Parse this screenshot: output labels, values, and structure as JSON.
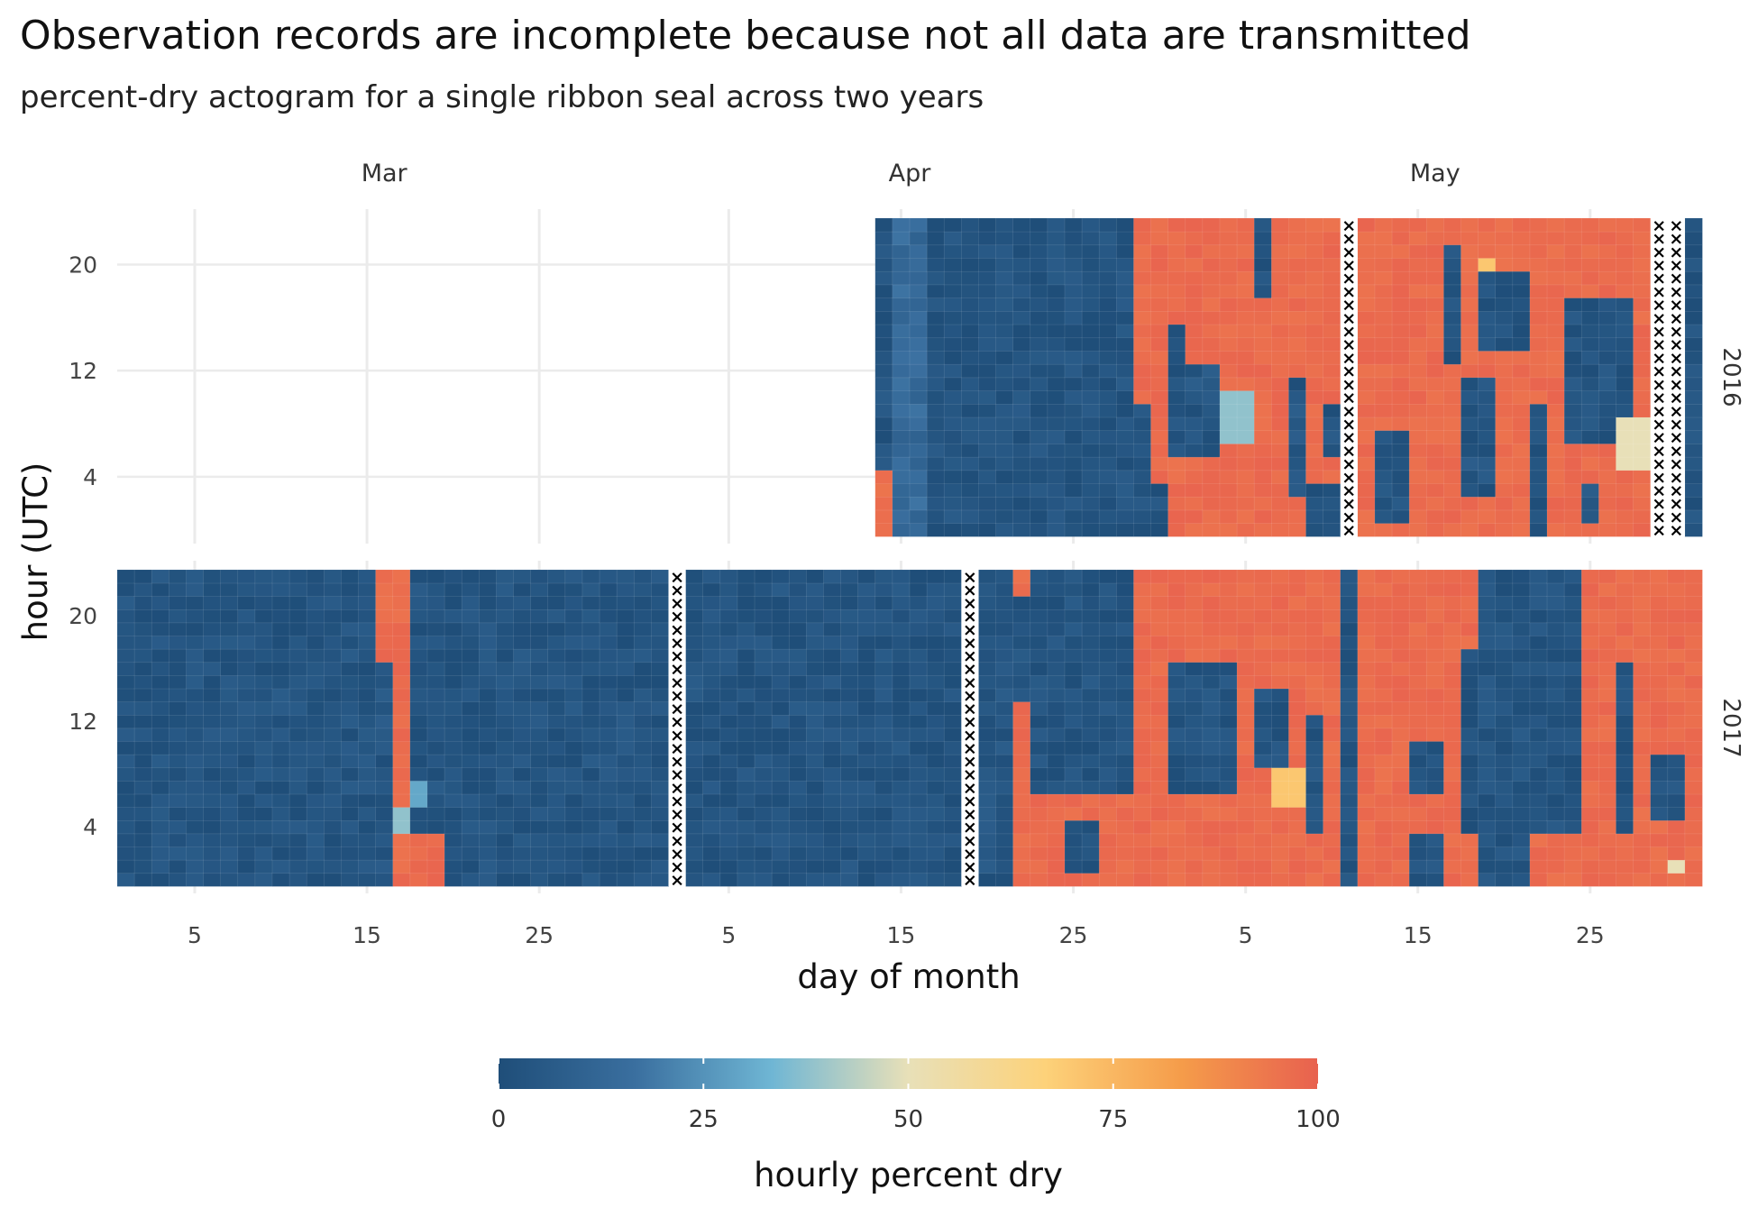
{
  "chart_data": {
    "type": "heatmap",
    "title": "Observation records are incomplete because not all data are transmitted",
    "subtitle": "percent-dry actogram for a single ribbon seal across two years",
    "xlabel": "day of month",
    "ylabel": "hour (UTC)",
    "month_labels": [
      "Mar",
      "Apr",
      "May"
    ],
    "x_ticks": [
      "5",
      "15",
      "25",
      "5",
      "15",
      "25",
      "5",
      "15",
      "25"
    ],
    "y_ticks": [
      "4",
      "12",
      "20"
    ],
    "facets": [
      {
        "year": "2016",
        "start_day": 45,
        "end_day": 92,
        "missing_days": [
          72,
          90,
          91
        ],
        "events": [
          {
            "days": [
              45,
              45
            ],
            "hours": [
              0,
              4
            ],
            "value": 95
          },
          {
            "days": [
              46,
              47
            ],
            "hours": [
              0,
              23
            ],
            "value": 14
          },
          {
            "days": [
              48,
              59
            ],
            "hours": [
              0,
              23
            ],
            "value": 3
          },
          {
            "days": [
              60,
              60
            ],
            "hours": [
              10,
              23
            ],
            "value": 97
          },
          {
            "days": [
              60,
              60
            ],
            "hours": [
              4,
              9
            ],
            "value": 4
          },
          {
            "days": [
              61,
              71
            ],
            "hours": [
              4,
              23
            ],
            "value": 97
          },
          {
            "days": [
              61,
              61
            ],
            "hours": [
              0,
              3
            ],
            "value": 3
          },
          {
            "days": [
              62,
              71
            ],
            "hours": [
              0,
              3
            ],
            "value": 97
          },
          {
            "days": [
              62,
              62
            ],
            "hours": [
              6,
              15
            ],
            "value": 3
          },
          {
            "days": [
              63,
              64
            ],
            "hours": [
              6,
              12
            ],
            "value": 4
          },
          {
            "days": [
              65,
              66
            ],
            "hours": [
              7,
              10
            ],
            "value": 38
          },
          {
            "days": [
              67,
              67
            ],
            "hours": [
              18,
              23
            ],
            "value": 3
          },
          {
            "days": [
              69,
              69
            ],
            "hours": [
              3,
              11
            ],
            "value": 4
          },
          {
            "days": [
              70,
              71
            ],
            "hours": [
              0,
              3
            ],
            "value": 3
          },
          {
            "days": [
              71,
              71
            ],
            "hours": [
              6,
              9
            ],
            "value": 4
          },
          {
            "days": [
              73,
              89
            ],
            "hours": [
              0,
              23
            ],
            "value": 97
          },
          {
            "days": [
              74,
              75
            ],
            "hours": [
              1,
              7
            ],
            "value": 3
          },
          {
            "days": [
              78,
              78
            ],
            "hours": [
              13,
              21
            ],
            "value": 3
          },
          {
            "days": [
              80,
              82
            ],
            "hours": [
              14,
              19
            ],
            "value": 3
          },
          {
            "days": [
              79,
              80
            ],
            "hours": [
              3,
              11
            ],
            "value": 4
          },
          {
            "days": [
              83,
              83
            ],
            "hours": [
              0,
              9
            ],
            "value": 3
          },
          {
            "days": [
              85,
              88
            ],
            "hours": [
              7,
              17
            ],
            "value": 3
          },
          {
            "days": [
              86,
              86
            ],
            "hours": [
              1,
              3
            ],
            "value": 4
          },
          {
            "days": [
              88,
              89
            ],
            "hours": [
              5,
              8
            ],
            "value": 50
          },
          {
            "days": [
              80,
              80
            ],
            "hours": [
              20,
              20
            ],
            "value": 70
          }
        ]
      },
      {
        "year": "2017",
        "start_day": 1,
        "end_day": 92,
        "missing_days": [
          33,
          50
        ],
        "events": [
          {
            "days": [
              1,
              15
            ],
            "hours": [
              0,
              23
            ],
            "value": 3
          },
          {
            "days": [
              16,
              16
            ],
            "hours": [
              0,
              23
            ],
            "value": 97
          },
          {
            "days": [
              17,
              17
            ],
            "hours": [
              0,
              23
            ],
            "value": 97
          },
          {
            "days": [
              16,
              16
            ],
            "hours": [
              0,
              16
            ],
            "value": 4
          },
          {
            "days": [
              17,
              17
            ],
            "hours": [
              4,
              5
            ],
            "value": 38
          },
          {
            "days": [
              18,
              19
            ],
            "hours": [
              0,
              3
            ],
            "value": 97
          },
          {
            "days": [
              18,
              18
            ],
            "hours": [
              6,
              7
            ],
            "value": 30
          },
          {
            "days": [
              18,
              32
            ],
            "hours": [
              8,
              23
            ],
            "value": 3
          },
          {
            "days": [
              20,
              32
            ],
            "hours": [
              0,
              7
            ],
            "value": 3
          },
          {
            "days": [
              34,
              49
            ],
            "hours": [
              0,
              23
            ],
            "value": 3
          },
          {
            "days": [
              51,
              52
            ],
            "hours": [
              0,
              23
            ],
            "value": 4
          },
          {
            "days": [
              53,
              53
            ],
            "hours": [
              0,
              23
            ],
            "value": 97
          },
          {
            "days": [
              53,
              53
            ],
            "hours": [
              14,
              21
            ],
            "value": 3
          },
          {
            "days": [
              54,
              59
            ],
            "hours": [
              0,
              6
            ],
            "value": 97
          },
          {
            "days": [
              56,
              57
            ],
            "hours": [
              1,
              4
            ],
            "value": 3
          },
          {
            "days": [
              60,
              61
            ],
            "hours": [
              0,
              23
            ],
            "value": 97
          },
          {
            "days": [
              62,
              71
            ],
            "hours": [
              0,
              23
            ],
            "value": 97
          },
          {
            "days": [
              62,
              65
            ],
            "hours": [
              7,
              16
            ],
            "value": 3
          },
          {
            "days": [
              67,
              68
            ],
            "hours": [
              9,
              14
            ],
            "value": 3
          },
          {
            "days": [
              68,
              69
            ],
            "hours": [
              6,
              8
            ],
            "value": 70
          },
          {
            "days": [
              70,
              70
            ],
            "hours": [
              4,
              12
            ],
            "value": 3
          },
          {
            "days": [
              72,
              72
            ],
            "hours": [
              0,
              23
            ],
            "value": 3
          },
          {
            "days": [
              73,
              75
            ],
            "hours": [
              0,
              23
            ],
            "value": 97
          },
          {
            "days": [
              76,
              77
            ],
            "hours": [
              4,
              23
            ],
            "value": 97
          },
          {
            "days": [
              76,
              77
            ],
            "hours": [
              7,
              10
            ],
            "value": 3
          },
          {
            "days": [
              78,
              79
            ],
            "hours": [
              0,
              23
            ],
            "value": 97
          },
          {
            "days": [
              79,
              79
            ],
            "hours": [
              4,
              17
            ],
            "value": 3
          },
          {
            "days": [
              80,
              85
            ],
            "hours": [
              0,
              23
            ],
            "value": 3
          },
          {
            "days": [
              83,
              85
            ],
            "hours": [
              0,
              3
            ],
            "value": 97
          },
          {
            "days": [
              86,
              92
            ],
            "hours": [
              0,
              23
            ],
            "value": 97
          },
          {
            "days": [
              88,
              88
            ],
            "hours": [
              4,
              16
            ],
            "value": 3
          },
          {
            "days": [
              90,
              91
            ],
            "hours": [
              5,
              9
            ],
            "value": 3
          },
          {
            "days": [
              91,
              91
            ],
            "hours": [
              1,
              1
            ],
            "value": 50
          }
        ]
      }
    ],
    "colorbar": {
      "label": "hourly percent dry",
      "ticks": [
        "0",
        "25",
        "50",
        "75",
        "100"
      ],
      "range": [
        0,
        100
      ],
      "colors": [
        "#1f4e79",
        "#3a6f9f",
        "#6fb6d4",
        "#e8e0b8",
        "#fdd27a",
        "#f59c4a",
        "#e8614f"
      ]
    },
    "missing_marker": "×",
    "background": "#ffffff",
    "grid_color": "#ebebeb"
  }
}
